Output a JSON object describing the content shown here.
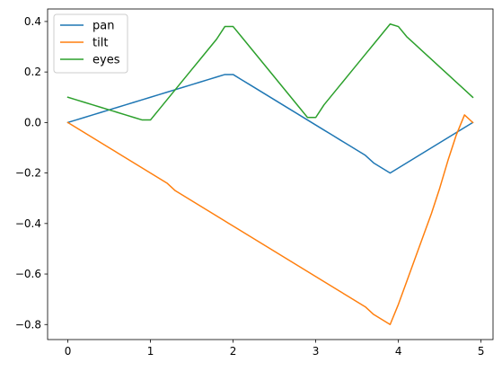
{
  "chart_data": {
    "type": "line",
    "x": [
      0,
      0.1,
      0.2,
      0.3,
      0.4,
      0.5,
      0.6,
      0.7,
      0.8,
      0.9,
      1.0,
      1.1,
      1.2,
      1.3,
      1.4,
      1.5,
      1.6,
      1.7,
      1.8,
      1.9,
      2.0,
      2.1,
      2.2,
      2.3,
      2.4,
      2.5,
      2.6,
      2.7,
      2.8,
      2.9,
      3.0,
      3.1,
      3.2,
      3.3,
      3.4,
      3.5,
      3.6,
      3.7,
      3.8,
      3.9,
      4.0,
      4.1,
      4.2,
      4.3,
      4.4,
      4.5,
      4.6,
      4.7,
      4.8,
      4.9
    ],
    "series": [
      {
        "name": "pan",
        "color": "#1f77b4",
        "values": [
          0.0,
          0.01,
          0.02,
          0.03,
          0.04,
          0.05,
          0.06,
          0.07,
          0.08,
          0.09,
          0.1,
          0.11,
          0.12,
          0.13,
          0.14,
          0.15,
          0.16,
          0.17,
          0.18,
          0.19,
          0.19,
          0.17,
          0.15,
          0.13,
          0.11,
          0.09,
          0.07,
          0.05,
          0.03,
          0.01,
          -0.01,
          -0.03,
          -0.05,
          -0.07,
          -0.09,
          -0.11,
          -0.13,
          -0.16,
          -0.18,
          -0.2,
          -0.18,
          -0.16,
          -0.14,
          -0.12,
          -0.1,
          -0.08,
          -0.06,
          -0.04,
          -0.02,
          0.0
        ]
      },
      {
        "name": "tilt",
        "color": "#ff7f0e",
        "values": [
          0.0,
          -0.02,
          -0.04,
          -0.06,
          -0.08,
          -0.1,
          -0.12,
          -0.14,
          -0.16,
          -0.18,
          -0.2,
          -0.22,
          -0.24,
          -0.27,
          -0.29,
          -0.31,
          -0.33,
          -0.35,
          -0.37,
          -0.39,
          -0.41,
          -0.43,
          -0.45,
          -0.47,
          -0.49,
          -0.51,
          -0.53,
          -0.55,
          -0.57,
          -0.59,
          -0.61,
          -0.63,
          -0.65,
          -0.67,
          -0.69,
          -0.71,
          -0.73,
          -0.76,
          -0.78,
          -0.8,
          -0.72,
          -0.63,
          -0.54,
          -0.45,
          -0.36,
          -0.26,
          -0.15,
          -0.05,
          0.03,
          0.0
        ]
      },
      {
        "name": "eyes",
        "color": "#2ca02c",
        "values": [
          0.1,
          0.09,
          0.08,
          0.07,
          0.06,
          0.05,
          0.04,
          0.03,
          0.02,
          0.01,
          0.01,
          0.05,
          0.09,
          0.13,
          0.17,
          0.21,
          0.25,
          0.29,
          0.33,
          0.38,
          0.38,
          0.34,
          0.3,
          0.26,
          0.22,
          0.18,
          0.14,
          0.1,
          0.06,
          0.02,
          0.02,
          0.07,
          0.11,
          0.15,
          0.19,
          0.23,
          0.27,
          0.31,
          0.35,
          0.39,
          0.38,
          0.34,
          0.31,
          0.28,
          0.25,
          0.22,
          0.19,
          0.16,
          0.13,
          0.1
        ]
      }
    ],
    "title": "",
    "xlabel": "",
    "ylabel": "",
    "xlim": [
      -0.245,
      5.145
    ],
    "ylim": [
      -0.8595,
      0.4495
    ],
    "xticks": [
      0,
      1,
      2,
      3,
      4,
      5
    ],
    "xtick_labels": [
      "0",
      "1",
      "2",
      "3",
      "4",
      "5"
    ],
    "yticks": [
      -0.8,
      -0.6,
      -0.4,
      -0.2,
      0.0,
      0.2,
      0.4
    ],
    "ytick_labels": [
      "−0.8",
      "−0.6",
      "−0.4",
      "−0.2",
      "0.0",
      "0.2",
      "0.4"
    ],
    "grid": false,
    "legend_position": "top-left"
  }
}
